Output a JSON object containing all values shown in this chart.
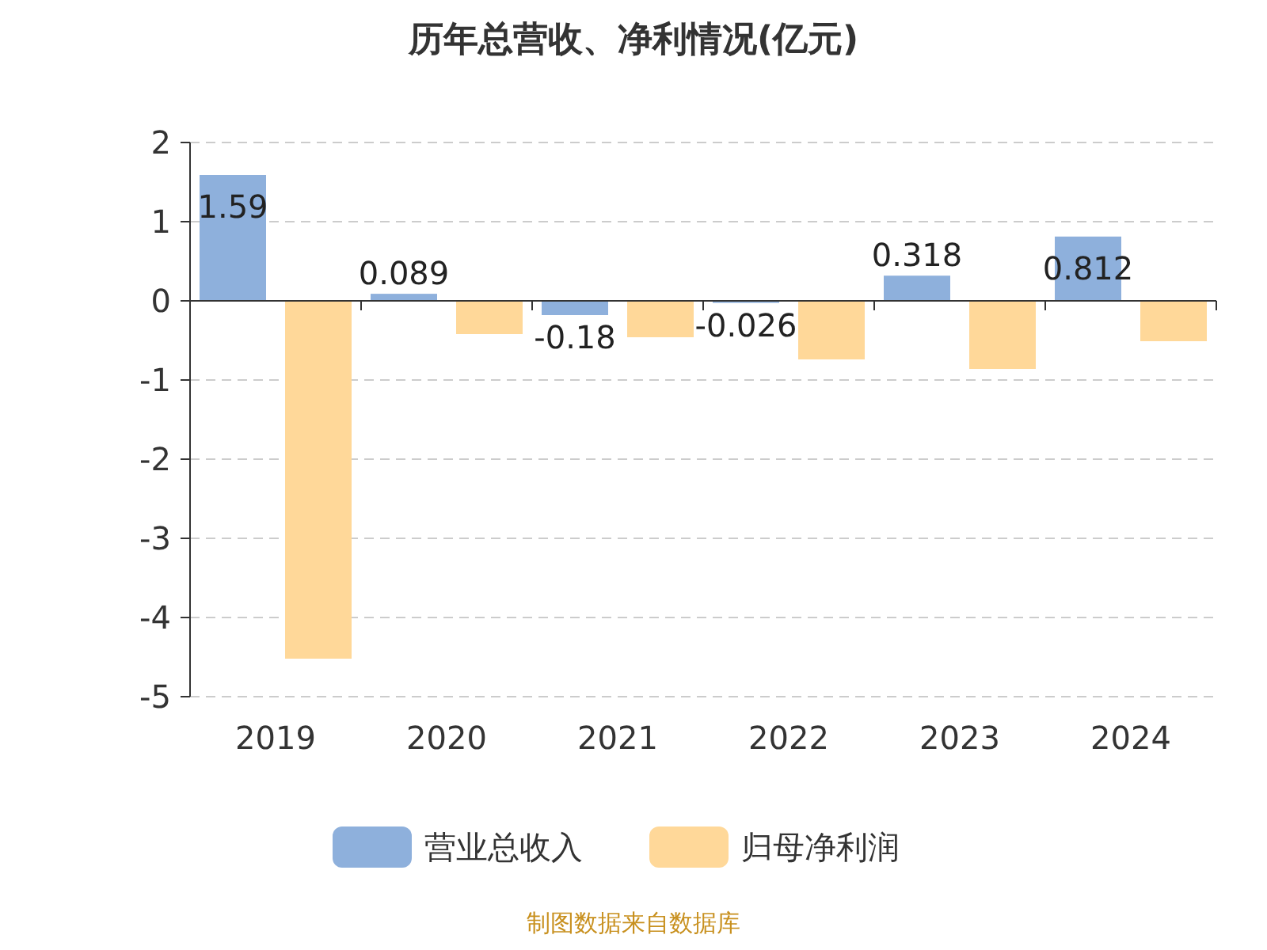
{
  "chart_data": {
    "type": "bar",
    "title": "历年总营收、净利情况(亿元)",
    "categories": [
      "2019",
      "2020",
      "2021",
      "2022",
      "2023",
      "2024"
    ],
    "series": [
      {
        "name": "营业总收入",
        "color": "#8eb0dc",
        "values": [
          1.59,
          0.089,
          -0.18,
          -0.026,
          0.318,
          0.812
        ],
        "value_labels": [
          "1.59",
          "0.089",
          "-0.18",
          "-0.026",
          "0.318",
          "0.812"
        ]
      },
      {
        "name": "归母净利润",
        "color": "#ffd899",
        "values": [
          -4.52,
          -0.42,
          -0.46,
          -0.74,
          -0.86,
          -0.51
        ]
      }
    ],
    "ylim": [
      -5,
      2
    ],
    "yticks": [
      -5,
      -4,
      -3,
      -2,
      -1,
      0,
      1,
      2
    ],
    "grid": "y",
    "legend": "bottom",
    "annotations": [
      "制图数据来自数据库"
    ]
  }
}
